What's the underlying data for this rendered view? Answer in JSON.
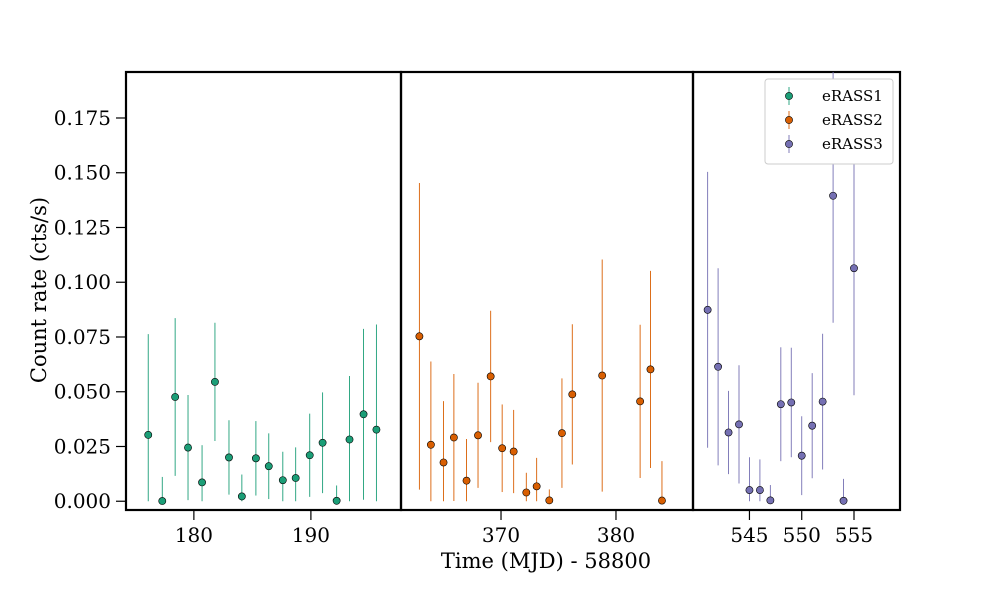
{
  "chart_data": {
    "type": "scatter",
    "xlabel": "Time (MJD) - 58800",
    "ylabel": "Count rate (cts/s)",
    "ylim": [
      -0.004,
      0.196
    ],
    "y_ticks": [
      0.0,
      0.025,
      0.05,
      0.075,
      0.1,
      0.125,
      0.15,
      0.175
    ],
    "y_tick_labels": [
      "0.000",
      "0.025",
      "0.050",
      "0.075",
      "0.100",
      "0.125",
      "0.150",
      "0.175"
    ],
    "grid": false,
    "legend_position": "top-right",
    "panels": [
      {
        "xlim": [
          174.2,
          197.7
        ],
        "x_ticks": [
          180,
          190
        ],
        "x_tick_labels": [
          "180",
          "190"
        ]
      },
      {
        "xlim": [
          361.3,
          386.7
        ],
        "x_ticks": [
          370,
          380
        ],
        "x_tick_labels": [
          "370",
          "380"
        ]
      },
      {
        "xlim": [
          539.6,
          559.4
        ],
        "x_ticks": [
          545,
          550,
          555
        ],
        "x_tick_labels": [
          "545",
          "550",
          "555"
        ]
      }
    ],
    "series": [
      {
        "name": "eRASS1",
        "color": "#1b9e77",
        "panel": 0,
        "points": [
          {
            "x": 176.1,
            "y": 0.0303,
            "err": 0.046
          },
          {
            "x": 177.3,
            "y": 0.0001,
            "err": 0.011
          },
          {
            "x": 178.4,
            "y": 0.0476,
            "err": 0.036
          },
          {
            "x": 179.5,
            "y": 0.0245,
            "err": 0.024
          },
          {
            "x": 180.7,
            "y": 0.0086,
            "err": 0.017
          },
          {
            "x": 181.8,
            "y": 0.0545,
            "err": 0.027
          },
          {
            "x": 183.0,
            "y": 0.02,
            "err": 0.017
          },
          {
            "x": 184.1,
            "y": 0.0022,
            "err": 0.01
          },
          {
            "x": 185.3,
            "y": 0.0196,
            "err": 0.017
          },
          {
            "x": 186.4,
            "y": 0.016,
            "err": 0.015
          },
          {
            "x": 187.6,
            "y": 0.0096,
            "err": 0.013
          },
          {
            "x": 188.7,
            "y": 0.0106,
            "err": 0.014
          },
          {
            "x": 189.9,
            "y": 0.021,
            "err": 0.019
          },
          {
            "x": 191.0,
            "y": 0.0267,
            "err": 0.023
          },
          {
            "x": 192.2,
            "y": 0.0002,
            "err": 0.007
          },
          {
            "x": 193.3,
            "y": 0.0282,
            "err": 0.029
          },
          {
            "x": 194.5,
            "y": 0.0397,
            "err": 0.039
          },
          {
            "x": 195.6,
            "y": 0.0327,
            "err": 0.048
          }
        ]
      },
      {
        "name": "eRASS2",
        "color": "#d95f02",
        "panel": 1,
        "points": [
          {
            "x": 362.9,
            "y": 0.0753,
            "err": 0.07
          },
          {
            "x": 363.9,
            "y": 0.0258,
            "err": 0.038
          },
          {
            "x": 365.0,
            "y": 0.0177,
            "err": 0.028
          },
          {
            "x": 365.9,
            "y": 0.0291,
            "err": 0.029
          },
          {
            "x": 367.0,
            "y": 0.0094,
            "err": 0.019
          },
          {
            "x": 368.0,
            "y": 0.0301,
            "err": 0.024
          },
          {
            "x": 369.1,
            "y": 0.057,
            "err": 0.03
          },
          {
            "x": 370.1,
            "y": 0.0242,
            "err": 0.02
          },
          {
            "x": 371.1,
            "y": 0.0227,
            "err": 0.019
          },
          {
            "x": 372.2,
            "y": 0.004,
            "err": 0.009
          },
          {
            "x": 373.1,
            "y": 0.0068,
            "err": 0.013
          },
          {
            "x": 374.2,
            "y": 0.0004,
            "err": 0.005
          },
          {
            "x": 375.3,
            "y": 0.0311,
            "err": 0.025
          },
          {
            "x": 376.2,
            "y": 0.0488,
            "err": 0.032
          },
          {
            "x": 378.8,
            "y": 0.0574,
            "err": 0.053
          },
          {
            "x": 382.1,
            "y": 0.0456,
            "err": 0.035
          },
          {
            "x": 383.0,
            "y": 0.0602,
            "err": 0.045
          },
          {
            "x": 384.0,
            "y": 0.0003,
            "err": 0.018
          }
        ]
      },
      {
        "name": "eRASS3",
        "color": "#7570b3",
        "panel": 2,
        "points": [
          {
            "x": 541.0,
            "y": 0.0874,
            "err": 0.063
          },
          {
            "x": 542.0,
            "y": 0.0614,
            "err": 0.045
          },
          {
            "x": 543.0,
            "y": 0.0314,
            "err": 0.019
          },
          {
            "x": 544.0,
            "y": 0.0351,
            "err": 0.027
          },
          {
            "x": 545.0,
            "y": 0.0051,
            "err": 0.015
          },
          {
            "x": 546.0,
            "y": 0.0051,
            "err": 0.014
          },
          {
            "x": 547.0,
            "y": 0.0004,
            "err": 0.007
          },
          {
            "x": 548.0,
            "y": 0.0443,
            "err": 0.026
          },
          {
            "x": 549.0,
            "y": 0.0451,
            "err": 0.025
          },
          {
            "x": 550.0,
            "y": 0.0208,
            "err": 0.018
          },
          {
            "x": 551.0,
            "y": 0.0345,
            "err": 0.024
          },
          {
            "x": 552.0,
            "y": 0.0455,
            "err": 0.031
          },
          {
            "x": 553.0,
            "y": 0.1395,
            "err": 0.058
          },
          {
            "x": 554.0,
            "y": 0.0002,
            "err": 0.01
          },
          {
            "x": 555.0,
            "y": 0.1064,
            "err": 0.058
          }
        ]
      }
    ]
  }
}
